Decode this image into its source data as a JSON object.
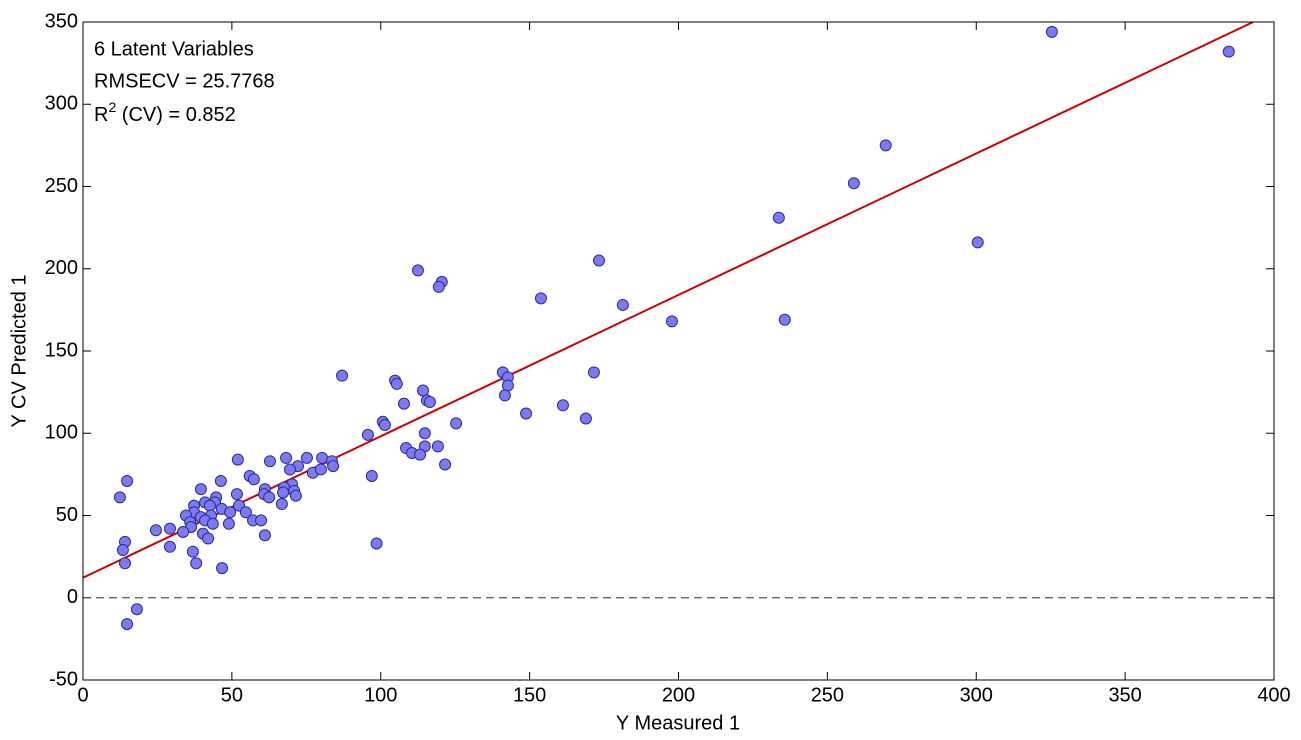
{
  "chart_data": {
    "type": "scatter",
    "xlabel": "Y Measured 1",
    "ylabel": "Y CV Predicted 1",
    "annotations": [
      "6 Latent Variables",
      "RMSECV = 25.7768"
    ],
    "r2_annotation": [
      "R",
      "2",
      " (CV) = 0.852"
    ],
    "xlim": [
      0,
      400
    ],
    "ylim": [
      -50,
      350
    ],
    "xticks": [
      0,
      50,
      100,
      150,
      200,
      250,
      300,
      350,
      400
    ],
    "yticks": [
      -50,
      0,
      50,
      100,
      150,
      200,
      250,
      300,
      350
    ],
    "grid": false,
    "color": "#7b7bef",
    "edge_color": "#2a2a9a",
    "fit_line": {
      "x": [
        0,
        393
      ],
      "y": [
        12.2,
        350
      ],
      "color": "#cc0000"
    },
    "reference_y": 0,
    "x": [
      325.4,
      384.8,
      269.6,
      258.9,
      233.7,
      300.5,
      173.3,
      112.5,
      120.5,
      119.5,
      153.8,
      181.3,
      197.8,
      235.7,
      87,
      141,
      171.6,
      104.8,
      105.4,
      142.7,
      142.7,
      114.2,
      115.5,
      116.5,
      107.8,
      141.7,
      161.2,
      148.8,
      168.9,
      100.7,
      101.4,
      125.3,
      95.7,
      114.8,
      114.8,
      119.2,
      108.5,
      110.5,
      113.2,
      121.6,
      97,
      98.6,
      68.2,
      75.2,
      80.3,
      83.6,
      84,
      62.8,
      52,
      72.2,
      69.5,
      77.2,
      79.9,
      56,
      57.4,
      46.3,
      14.8,
      70.2,
      67.5,
      70.9,
      61.1,
      60.8,
      51.7,
      67.2,
      71.5,
      62.5,
      39.6,
      12.4,
      44.7,
      44.3,
      41,
      42.6,
      37.3,
      66.8,
      52.4,
      46.6,
      54.7,
      49.4,
      37.3,
      34.6,
      39.6,
      43,
      57.1,
      59.8,
      41,
      36,
      43.6,
      49,
      36.3,
      29.2,
      24.5,
      33.6,
      40.3,
      42,
      61.1,
      14.1,
      29.2,
      13.4,
      36.9,
      14.1,
      38,
      46.7,
      18.1,
      14.8
    ],
    "values": [
      344,
      332,
      275,
      252,
      231,
      216,
      205,
      199,
      192,
      189,
      182,
      178,
      168,
      169,
      135,
      137,
      137,
      132,
      130,
      134,
      129,
      126,
      120,
      119,
      118,
      123,
      117,
      112,
      109,
      107,
      105,
      106,
      99,
      100,
      92,
      92,
      91,
      88,
      87,
      81,
      74,
      33,
      85,
      85,
      85,
      83,
      80,
      83,
      84,
      80,
      78,
      76,
      78,
      74,
      72,
      71,
      71,
      69,
      67,
      65,
      66,
      63,
      63,
      64,
      62,
      61,
      66,
      61,
      61,
      58,
      58,
      56,
      56,
      57,
      56,
      54,
      52,
      52,
      52,
      50,
      49,
      50,
      47,
      47,
      47,
      46,
      45,
      45,
      43,
      42,
      41,
      40,
      39,
      36,
      38,
      34,
      31,
      29,
      28,
      21,
      21,
      18,
      -7,
      -16
    ]
  }
}
